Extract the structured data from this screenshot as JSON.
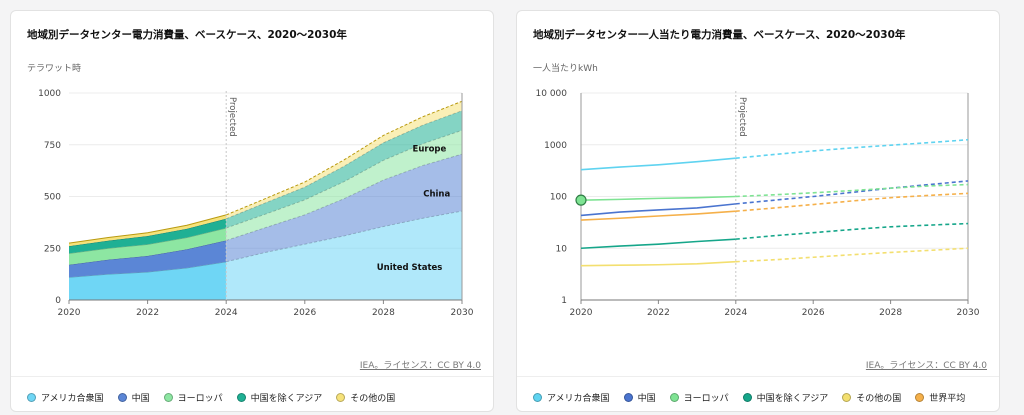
{
  "chart_data": [
    {
      "type": "area",
      "title": "地域別データセンター電力消費量、ベースケース、2020〜2030年",
      "ylabel": "テラワット時",
      "xlabel": "",
      "x": [
        2020,
        2021,
        2022,
        2023,
        2024,
        2025,
        2026,
        2027,
        2028,
        2029,
        2030
      ],
      "x_ticks": [
        "2020",
        "2022",
        "2024",
        "2026",
        "2028",
        "2030"
      ],
      "y_ticks": [
        "0",
        "250",
        "500",
        "750",
        "1000"
      ],
      "ylim": [
        0,
        1000
      ],
      "projected_from": 2024,
      "projected_label": "Projected",
      "series": [
        {
          "name": "アメリカ合衆国",
          "color": "#6fd6f5",
          "values": [
            110,
            125,
            135,
            155,
            185,
            230,
            270,
            310,
            355,
            395,
            430
          ]
        },
        {
          "name": "中国",
          "color": "#5b86d6",
          "values": [
            60,
            70,
            78,
            90,
            103,
            120,
            142,
            180,
            225,
            255,
            275
          ]
        },
        {
          "name": "ヨーロッパ",
          "color": "#8de6a2",
          "values": [
            55,
            55,
            56,
            57,
            60,
            65,
            72,
            82,
            95,
            105,
            115
          ]
        },
        {
          "name": "中国を除くアジア",
          "color": "#1fb094",
          "values": [
            35,
            37,
            40,
            42,
            45,
            55,
            62,
            75,
            85,
            90,
            95
          ]
        },
        {
          "name": "その他の国",
          "color": "#f6e27a",
          "values": [
            15,
            15,
            16,
            17,
            18,
            20,
            24,
            30,
            35,
            40,
            45
          ]
        }
      ],
      "annotations": [
        "United States",
        "China",
        "Europe"
      ],
      "credit": "IEA。ライセンス：CC BY 4.0"
    },
    {
      "type": "line",
      "title": "地域別データセンター一人当たり電力消費量、ベースケース、2020〜2030年",
      "ylabel": "一人当たりkWh",
      "xlabel": "",
      "yscale": "log",
      "x": [
        2020,
        2021,
        2022,
        2023,
        2024,
        2025,
        2026,
        2027,
        2028,
        2029,
        2030
      ],
      "x_ticks": [
        "2020",
        "2022",
        "2024",
        "2026",
        "2028",
        "2030"
      ],
      "y_ticks": [
        "1",
        "10",
        "100",
        "1000",
        "10 000"
      ],
      "ylim": [
        1,
        10000
      ],
      "projected_from": 2024,
      "projected_label": "Projected",
      "series": [
        {
          "name": "アメリカ合衆国",
          "color": "#5fd3f0",
          "values": [
            330,
            370,
            410,
            470,
            550,
            650,
            760,
            870,
            980,
            1100,
            1250
          ]
        },
        {
          "name": "中国",
          "color": "#4a74cf",
          "values": [
            43,
            50,
            55,
            60,
            72,
            85,
            100,
            120,
            145,
            170,
            200
          ]
        },
        {
          "name": "ヨーロッパ",
          "color": "#7ee393",
          "values": [
            85,
            88,
            92,
            95,
            100,
            108,
            118,
            130,
            145,
            160,
            170
          ]
        },
        {
          "name": "中国を除くアジア",
          "color": "#16a68a",
          "values": [
            10,
            11,
            12,
            13.5,
            15,
            17.5,
            20,
            23,
            26,
            28,
            30
          ]
        },
        {
          "name": "その他の国",
          "color": "#f3df6f",
          "values": [
            4.6,
            4.7,
            4.8,
            5.0,
            5.5,
            6.0,
            6.7,
            7.5,
            8.3,
            9.1,
            10
          ]
        },
        {
          "name": "世界平均",
          "color": "#f5b04a",
          "values": [
            35,
            38,
            42,
            46,
            52,
            60,
            70,
            82,
            95,
            105,
            115
          ]
        }
      ],
      "credit": "IEA。ライセンス：CC BY 4.0"
    }
  ]
}
